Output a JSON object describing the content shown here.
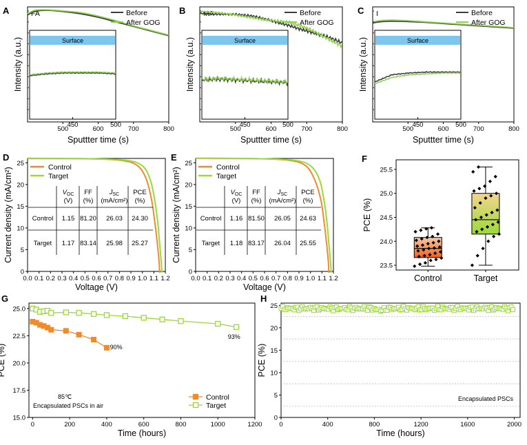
{
  "chart_data": [
    {
      "panel": "A",
      "type": "line",
      "inset_label": "FA",
      "xlabel": "Sputtter time (s)",
      "ylabel": "Intensity (a.u.)",
      "xlim": [
        400,
        800
      ],
      "ylim": [
        0,
        1
      ],
      "xticks": [
        "500",
        "600",
        "700",
        "800"
      ],
      "legend": [
        "Before",
        "After GOG"
      ],
      "series": [
        {
          "name": "Before",
          "color": "#3b3b3b",
          "x": [
            400,
            420,
            450,
            500,
            550,
            600,
            650,
            700,
            750,
            800
          ],
          "values": [
            0.93,
            0.96,
            0.97,
            0.96,
            0.94,
            0.91,
            0.87,
            0.83,
            0.79,
            0.75
          ]
        },
        {
          "name": "After GOG",
          "color": "#8fd14f",
          "x": [
            400,
            420,
            450,
            500,
            550,
            600,
            650,
            700,
            750,
            800
          ],
          "values": [
            0.94,
            0.97,
            0.975,
            0.965,
            0.95,
            0.92,
            0.88,
            0.835,
            0.795,
            0.755
          ]
        }
      ],
      "inset": {
        "label": "Surface",
        "xlim": [
          400,
          500
        ],
        "xticks": [
          "450",
          "500"
        ],
        "ylim": [
          0,
          1
        ],
        "series": [
          {
            "name": "Before",
            "x": [
              400,
              420,
              440,
              460,
              480,
              500
            ],
            "values": [
              0.49,
              0.51,
              0.52,
              0.52,
              0.52,
              0.51
            ]
          },
          {
            "name": "After GOG",
            "x": [
              400,
              420,
              440,
              460,
              480,
              500
            ],
            "values": [
              0.5,
              0.52,
              0.53,
              0.53,
              0.53,
              0.52
            ]
          }
        ]
      }
    },
    {
      "panel": "B",
      "type": "line",
      "inset_label": "MA",
      "xlabel": "Sputtter time (s)",
      "ylabel": "Intensity (a.u.)",
      "xlim": [
        400,
        800
      ],
      "ylim": [
        0,
        1
      ],
      "xticks": [
        "500",
        "600",
        "700",
        "800"
      ],
      "legend": [
        "Before",
        "After GOG"
      ],
      "series": [
        {
          "name": "Before",
          "color": "#3b3b3b",
          "x": [
            400,
            450,
            500,
            550,
            600,
            650,
            700,
            750,
            800
          ],
          "values": [
            0.95,
            0.94,
            0.93,
            0.91,
            0.88,
            0.85,
            0.8,
            0.74,
            0.67
          ]
        },
        {
          "name": "After GOG",
          "color": "#8fd14f",
          "x": [
            400,
            450,
            500,
            550,
            600,
            650,
            700,
            750,
            800
          ],
          "values": [
            0.955,
            0.945,
            0.935,
            0.915,
            0.885,
            0.855,
            0.805,
            0.745,
            0.675
          ]
        }
      ],
      "inset": {
        "label": "Surface",
        "xlim": [
          400,
          500
        ],
        "xticks": [
          "450",
          "500"
        ],
        "ylim": [
          0,
          1
        ],
        "series": [
          {
            "name": "Before",
            "x": [
              400,
              420,
              440,
              460,
              480,
              500
            ],
            "values": [
              0.44,
              0.45,
              0.44,
              0.43,
              0.42,
              0.41
            ]
          },
          {
            "name": "After GOG",
            "x": [
              400,
              420,
              440,
              460,
              480,
              500
            ],
            "values": [
              0.45,
              0.46,
              0.45,
              0.44,
              0.43,
              0.42
            ]
          }
        ]
      }
    },
    {
      "panel": "C",
      "type": "line",
      "inset_label": "I",
      "xlabel": "Sputtter time (s)",
      "ylabel": "Intensity (a.u.)",
      "xlim": [
        400,
        800
      ],
      "ylim": [
        0,
        1
      ],
      "xticks": [
        "500",
        "600",
        "700",
        "800"
      ],
      "legend": [
        "Before",
        "After GOG"
      ],
      "series": [
        {
          "name": "Before",
          "color": "#3b3b3b",
          "x": [
            400,
            420,
            450,
            500,
            550,
            600,
            650,
            700,
            750,
            800
          ],
          "values": [
            0.86,
            0.87,
            0.875,
            0.872,
            0.865,
            0.855,
            0.845,
            0.835,
            0.825,
            0.815
          ]
        },
        {
          "name": "After GOG",
          "color": "#8fd14f",
          "x": [
            400,
            420,
            450,
            500,
            550,
            600,
            650,
            700,
            750,
            800
          ],
          "values": [
            0.87,
            0.88,
            0.885,
            0.88,
            0.87,
            0.86,
            0.85,
            0.84,
            0.83,
            0.82
          ]
        }
      ],
      "inset": {
        "label": "Surface",
        "xlim": [
          400,
          500
        ],
        "xticks": [
          "450",
          "500"
        ],
        "ylim": [
          0,
          1
        ],
        "series": [
          {
            "name": "Before",
            "x": [
              400,
              420,
              440,
              460,
              480,
              500
            ],
            "values": [
              0.42,
              0.5,
              0.52,
              0.53,
              0.53,
              0.53
            ]
          },
          {
            "name": "After GOG",
            "x": [
              400,
              420,
              440,
              460,
              480,
              500
            ],
            "values": [
              0.4,
              0.47,
              0.5,
              0.51,
              0.52,
              0.52
            ]
          }
        ]
      }
    },
    {
      "panel": "D",
      "type": "line",
      "xlabel": "Voltage (V)",
      "ylabel": "Current density (mA/cm²)",
      "xlim": [
        0,
        1.2
      ],
      "ylim": [
        0,
        26
      ],
      "xticks": [
        "0.0",
        "0.1",
        "0.2",
        "0.3",
        "0.4",
        "0.5",
        "0.6",
        "0.7",
        "0.8",
        "0.9",
        "1.0",
        "1.1",
        "1.2"
      ],
      "yticks": [
        "0",
        "5",
        "10",
        "15",
        "20",
        "25"
      ],
      "legend": [
        "Control",
        "Target"
      ],
      "series": [
        {
          "name": "Control",
          "color": "#f08a2a",
          "x": [
            0,
            0.5,
            0.8,
            0.95,
            1.03,
            1.08,
            1.11,
            1.13,
            1.145,
            1.15
          ],
          "values": [
            26.03,
            25.95,
            25.6,
            24.5,
            21.5,
            16.5,
            11.0,
            6.5,
            2.5,
            0
          ]
        },
        {
          "name": "Target",
          "color": "#9bd93a",
          "x": [
            0,
            0.5,
            0.85,
            1.0,
            1.07,
            1.11,
            1.135,
            1.15,
            1.165,
            1.17
          ],
          "values": [
            25.98,
            25.92,
            25.6,
            24.3,
            21.0,
            16.0,
            11.0,
            6.5,
            2.0,
            0
          ]
        }
      ],
      "table": {
        "headers": [
          "",
          "V_OC (V)",
          "FF (%)",
          "J_SC (mA/cm²)",
          "PCE (%)"
        ],
        "rows": [
          [
            "Control",
            "1.15",
            "81.20",
            "26.03",
            "24.30"
          ],
          [
            "Target",
            "1.17",
            "83.14",
            "25.98",
            "25.27"
          ]
        ]
      }
    },
    {
      "panel": "E",
      "type": "line",
      "xlabel": "Voltage (V)",
      "ylabel": "Current density (mA/cm²)",
      "xlim": [
        0,
        1.2
      ],
      "ylim": [
        0,
        26
      ],
      "xticks": [
        "0.0",
        "0.1",
        "0.2",
        "0.3",
        "0.4",
        "0.5",
        "0.6",
        "0.7",
        "0.8",
        "0.9",
        "1.0",
        "1.1",
        "1.2"
      ],
      "yticks": [
        "0",
        "5",
        "10",
        "15",
        "20",
        "25"
      ],
      "legend": [
        "Control",
        "Target"
      ],
      "series": [
        {
          "name": "Control",
          "color": "#f08a2a",
          "x": [
            0,
            0.5,
            0.8,
            0.95,
            1.03,
            1.09,
            1.12,
            1.14,
            1.155,
            1.16
          ],
          "values": [
            26.05,
            25.97,
            25.6,
            24.5,
            21.5,
            16.5,
            11.0,
            6.5,
            2.5,
            0
          ]
        },
        {
          "name": "Target",
          "color": "#9bd93a",
          "x": [
            0,
            0.5,
            0.85,
            1.0,
            1.08,
            1.12,
            1.145,
            1.16,
            1.175,
            1.18
          ],
          "values": [
            26.04,
            25.96,
            25.6,
            24.3,
            21.0,
            16.0,
            11.0,
            6.5,
            2.0,
            0
          ]
        }
      ],
      "table": {
        "headers": [
          "",
          "V_OC (V)",
          "FF (%)",
          "J_SC (mA/cm²)",
          "PCE (%)"
        ],
        "rows": [
          [
            "Control",
            "1.16",
            "81.50",
            "26.05",
            "24.63"
          ],
          [
            "Target",
            "1.18",
            "83.17",
            "26.04",
            "25.55"
          ]
        ]
      }
    },
    {
      "panel": "F",
      "type": "box",
      "xlabel": "",
      "ylabel": "PCE (%)",
      "ylim": [
        23.4,
        25.7
      ],
      "yticks": [
        "23.5",
        "24.0",
        "24.5",
        "25.0",
        "25.5"
      ],
      "categories": [
        "Control",
        "Target"
      ],
      "boxes": [
        {
          "name": "Control",
          "min": 23.48,
          "q1": 23.66,
          "median": 23.85,
          "q3": 24.08,
          "max": 24.28,
          "points": [
            23.48,
            23.52,
            23.55,
            23.6,
            23.62,
            23.65,
            23.68,
            23.7,
            23.72,
            23.75,
            23.78,
            23.8,
            23.82,
            23.85,
            23.86,
            23.88,
            23.9,
            23.92,
            23.95,
            23.97,
            24.0,
            24.02,
            24.05,
            24.08,
            24.1,
            24.15,
            24.2,
            24.23,
            24.26,
            24.28
          ]
        },
        {
          "name": "Target",
          "min": 23.5,
          "q1": 24.15,
          "median": 24.45,
          "q3": 25.0,
          "max": 25.55,
          "points": [
            23.5,
            23.7,
            23.85,
            24.0,
            24.1,
            24.15,
            24.2,
            24.25,
            24.3,
            24.35,
            24.4,
            24.45,
            24.5,
            24.55,
            24.6,
            24.65,
            24.7,
            24.8,
            24.9,
            24.95,
            25.0,
            25.05,
            25.1,
            25.15,
            25.25,
            25.35,
            25.45,
            25.55
          ]
        }
      ]
    },
    {
      "panel": "G",
      "type": "line",
      "xlabel": "Time (hours)",
      "ylabel": "PCE (%)",
      "xlim": [
        -20,
        1200
      ],
      "ylim": [
        15,
        25.5
      ],
      "xticks": [
        "0",
        "200",
        "400",
        "600",
        "800",
        "1000",
        "1200"
      ],
      "yticks": [
        "15.0",
        "17.5",
        "20.0",
        "22.5",
        "25.0"
      ],
      "legend": [
        "Control",
        "Target"
      ],
      "annotations": [
        "90%",
        "93%",
        "85℃",
        "Encapsulated PSCs in air"
      ],
      "series": [
        {
          "name": "Control",
          "color": "#f08a2a",
          "x": [
            0,
            20,
            40,
            60,
            80,
            100,
            180,
            250,
            330,
            400
          ],
          "values": [
            23.8,
            23.7,
            23.5,
            23.4,
            23.25,
            23.05,
            22.95,
            22.6,
            22.15,
            21.4
          ]
        },
        {
          "name": "Target",
          "color": "#9bd93a",
          "x": [
            0,
            20,
            40,
            60,
            80,
            100,
            180,
            250,
            330,
            400,
            500,
            600,
            700,
            800,
            1000,
            1100
          ],
          "values": [
            25.0,
            24.9,
            24.7,
            24.75,
            24.8,
            24.6,
            24.65,
            24.6,
            24.5,
            24.4,
            24.3,
            24.15,
            24.0,
            23.85,
            23.6,
            23.3
          ]
        }
      ]
    },
    {
      "panel": "H",
      "type": "scatter",
      "xlabel": "Time (hours)",
      "ylabel": "PCE (%)",
      "xlim": [
        0,
        2050
      ],
      "ylim": [
        0,
        25.5
      ],
      "xticks": [
        "0",
        "400",
        "800",
        "1200",
        "1600",
        "2000"
      ],
      "yticks": [
        "0",
        "5",
        "10",
        "15",
        "20",
        "25"
      ],
      "annotations": [
        "Encapsulated PSCs"
      ],
      "series": [
        {
          "name": "PCE",
          "color": "#9bd93a",
          "x_range": [
            0,
            2000
          ],
          "values_mean": 24.3,
          "values_spread": 0.5
        }
      ]
    }
  ],
  "panel_labels": {
    "A": "A",
    "B": "B",
    "C": "C",
    "D": "D",
    "E": "E",
    "F": "F",
    "G": "G",
    "H": "H"
  }
}
